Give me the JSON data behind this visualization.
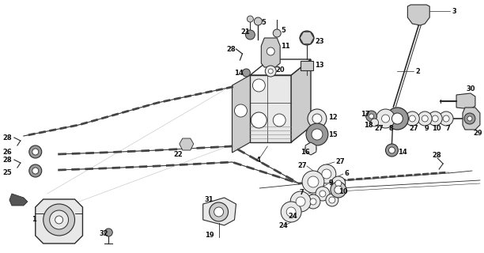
{
  "bg_color": "#ffffff",
  "fig_width": 6.12,
  "fig_height": 3.2,
  "dpi": 100,
  "lc": "#2a2a2a",
  "gray_light": "#cccccc",
  "gray_mid": "#999999",
  "gray_dark": "#555555",
  "gray_fill": "#e8e8e8",
  "label_fs": 6.0
}
